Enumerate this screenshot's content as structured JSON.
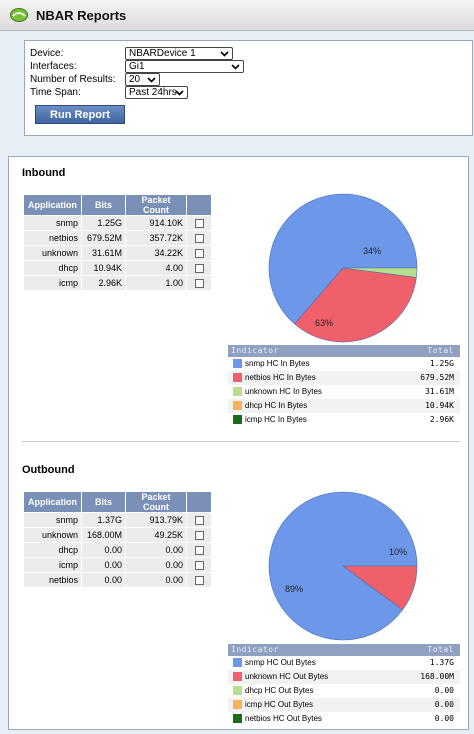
{
  "app": {
    "title": "NBAR Reports"
  },
  "form": {
    "device_label": "Device:",
    "device_value": "NBARDevice 1",
    "interfaces_label": "Interfaces:",
    "interfaces_value": "Gi1",
    "results_label": "Number of Results:",
    "results_value": "20",
    "timespan_label": "Time Span:",
    "timespan_value": "Past 24hrs",
    "run_label": "Run Report"
  },
  "table_headers": {
    "app": "Application",
    "bits": "Bits",
    "packets": "Packet Count"
  },
  "inbound": {
    "title": "Inbound",
    "rows": [
      {
        "app": "snmp",
        "bits": "1.25G",
        "packets": "914.10K"
      },
      {
        "app": "netbios",
        "bits": "679.52M",
        "packets": "357.72K"
      },
      {
        "app": "unknown",
        "bits": "31.61M",
        "packets": "34.22K"
      },
      {
        "app": "dhcp",
        "bits": "10.94K",
        "packets": "4.00"
      },
      {
        "app": "icmp",
        "bits": "2.96K",
        "packets": "1.00"
      }
    ],
    "pie_labels": {
      "a": "34%",
      "b": "63%"
    },
    "legend_header": {
      "indicator": "Indicator",
      "total": "Total"
    },
    "legend": [
      {
        "label": "snmp HC In Bytes",
        "value": "1.25G",
        "color": "#6d98ea"
      },
      {
        "label": "netbios HC In Bytes",
        "value": "679.52M",
        "color": "#f0606a"
      },
      {
        "label": "unknown HC In Bytes",
        "value": "31.61M",
        "color": "#b7e08c"
      },
      {
        "label": "dhcp HC In Bytes",
        "value": "10.94K",
        "color": "#f6b35c"
      },
      {
        "label": "icmp HC In Bytes",
        "value": "2.96K",
        "color": "#1b6d1b"
      }
    ]
  },
  "outbound": {
    "title": "Outbound",
    "rows": [
      {
        "app": "snmp",
        "bits": "1.37G",
        "packets": "913.79K"
      },
      {
        "app": "unknown",
        "bits": "168.00M",
        "packets": "49.25K"
      },
      {
        "app": "dhcp",
        "bits": "0.00",
        "packets": "0.00"
      },
      {
        "app": "icmp",
        "bits": "0.00",
        "packets": "0.00"
      },
      {
        "app": "netbios",
        "bits": "0.00",
        "packets": "0.00"
      }
    ],
    "pie_labels": {
      "a": "10%",
      "b": "89%"
    },
    "legend_header": {
      "indicator": "Indicator",
      "total": "Total"
    },
    "legend": [
      {
        "label": "snmp HC Out Bytes",
        "value": "1.37G",
        "color": "#6d98ea"
      },
      {
        "label": "unknown HC Out Bytes",
        "value": "168.00M",
        "color": "#f0606a"
      },
      {
        "label": "dhcp HC Out Bytes",
        "value": "0.00",
        "color": "#b7e08c"
      },
      {
        "label": "icmp HC Out Bytes",
        "value": "0.00",
        "color": "#f6b35c"
      },
      {
        "label": "netbios HC Out Bytes",
        "value": "0.00",
        "color": "#1b6d1b"
      }
    ]
  },
  "chart_data": [
    {
      "type": "pie",
      "categories": [
        "snmp",
        "netbios",
        "unknown",
        "dhcp",
        "icmp"
      ],
      "values": [
        63,
        34,
        2,
        0,
        0
      ],
      "colors": [
        "#6d98ea",
        "#f0606a",
        "#b7e08c",
        "#f6b35c",
        "#1b6d1b"
      ]
    },
    {
      "type": "pie",
      "categories": [
        "snmp",
        "unknown",
        "dhcp",
        "icmp",
        "netbios"
      ],
      "values": [
        89,
        10,
        0,
        0,
        0
      ],
      "colors": [
        "#6d98ea",
        "#f0606a",
        "#b7e08c",
        "#f6b35c",
        "#1b6d1b"
      ]
    }
  ]
}
